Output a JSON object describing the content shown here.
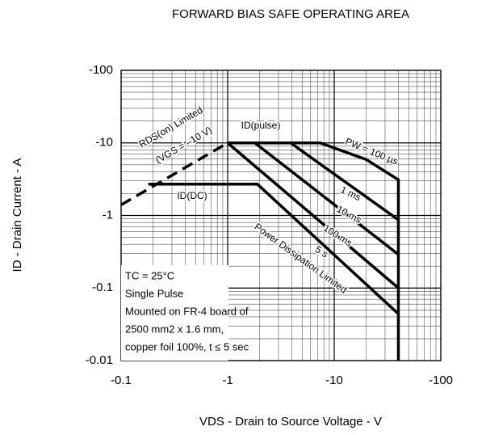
{
  "chart_data": {
    "type": "line",
    "title": "FORWARD BIAS SAFE OPERATING AREA",
    "xlabel": "VDS - Drain to Source Voltage - V",
    "ylabel": "ID - Drain Current - A",
    "xscale": "log",
    "yscale": "log",
    "grid": true,
    "xlim": [
      -0.1,
      -100
    ],
    "ylim": [
      -0.01,
      -100
    ],
    "xticks": [
      -0.1,
      -1,
      -10,
      -100
    ],
    "yticks": [
      -0.01,
      -0.1,
      -1,
      -10,
      -100
    ],
    "series": [
      {
        "color": "#000000",
        "dash": true,
        "x": [
          -0.1,
          -1.0
        ],
        "values": [
          -1.4,
          -10
        ]
      },
      {
        "color": "#000000",
        "x": [
          -1.0,
          -7.4,
          -20,
          -40,
          -40
        ],
        "values": [
          -10,
          -10,
          -5.9,
          -3.1,
          -0.01
        ]
      },
      {
        "color": "#000000",
        "x": [
          -3.9,
          -40
        ],
        "values": [
          -10,
          -0.87
        ]
      },
      {
        "color": "#000000",
        "x": [
          -1.8,
          -40
        ],
        "values": [
          -10,
          -0.29
        ]
      },
      {
        "color": "#000000",
        "x": [
          -1.0,
          -40
        ],
        "values": [
          -10,
          -0.1
        ]
      },
      {
        "color": "#000000",
        "x": [
          -0.18,
          -1.9,
          -40
        ],
        "values": [
          -2.7,
          -2.7,
          -0.044
        ]
      }
    ],
    "annotations": [
      "RDS(on) Limited",
      "(VGS = –10 V)",
      "ID(pulse)",
      "ID(DC)",
      "PW = 100 µs",
      "1 ms",
      "10 ms",
      "100 ms",
      "5 s",
      "Power Dissipation Limited"
    ],
    "notes": [
      "TC = 25°C",
      "Single Pulse",
      "Mounted on FR-4 board of",
      "2500 mm2 x 1.6 mm,",
      "copper foil 100%, t ≤ 5 sec"
    ]
  }
}
